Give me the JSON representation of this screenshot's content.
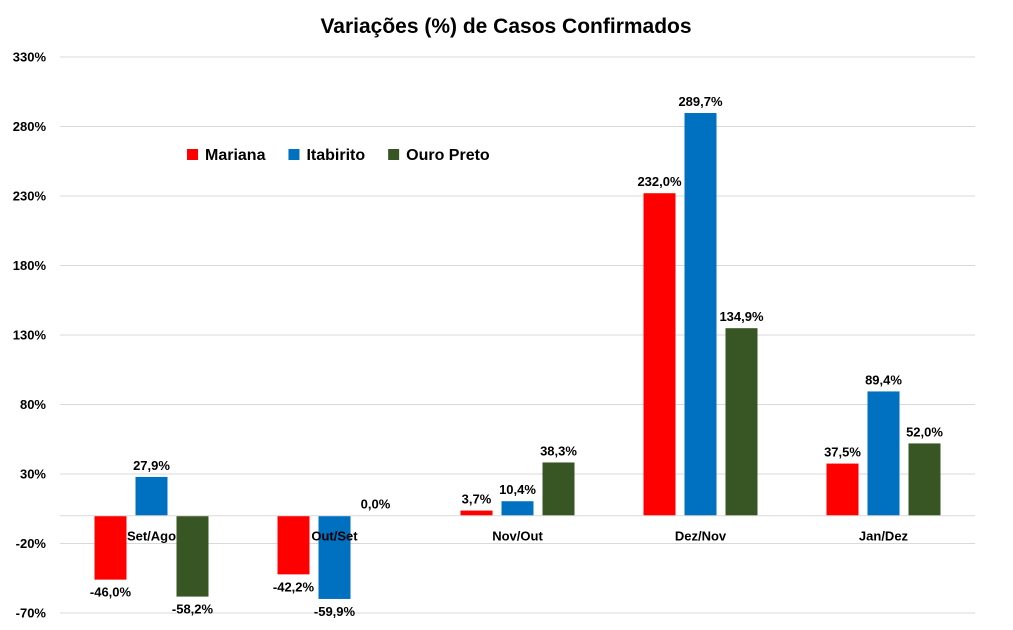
{
  "chart_data": {
    "type": "bar",
    "title": "Variações (%) de Casos Confirmados",
    "categories": [
      "Set/Ago",
      "Out/Set",
      "Nov/Out",
      "Dez/Nov",
      "Jan/Dez"
    ],
    "series": [
      {
        "name": "Mariana",
        "color": "#ff0000",
        "values": [
          -46.0,
          -42.2,
          3.7,
          232.0,
          37.5
        ],
        "labels": [
          "-46,0%",
          "-42,2%",
          "3,7%",
          "232,0%",
          "37,5%"
        ]
      },
      {
        "name": "Itabirito",
        "color": "#0070c0",
        "values": [
          27.9,
          -59.9,
          10.4,
          289.7,
          89.4
        ],
        "labels": [
          "27,9%",
          "-59,9%",
          "10,4%",
          "289,7%",
          "89,4%"
        ]
      },
      {
        "name": "Ouro Preto",
        "color": "#375623",
        "values": [
          -58.2,
          0.0,
          38.3,
          134.9,
          52.0
        ],
        "labels": [
          "-58,2%",
          "0,0%",
          "38,3%",
          "134,9%",
          "52,0%"
        ]
      }
    ],
    "ylim": [
      -70,
      330
    ],
    "yticks": [
      -70,
      -20,
      30,
      80,
      130,
      180,
      230,
      280,
      330
    ],
    "ytick_labels": [
      "-70%",
      "-20%",
      "30%",
      "80%",
      "130%",
      "180%",
      "230%",
      "280%",
      "330%"
    ],
    "grid": true,
    "legend": "top-left, inside plot area"
  }
}
